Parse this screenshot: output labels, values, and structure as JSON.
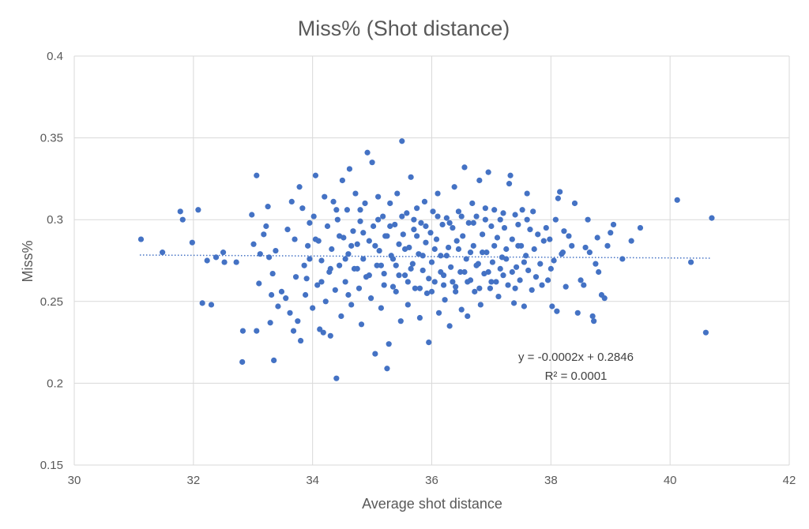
{
  "chart_data": {
    "type": "scatter",
    "title": "Miss% (Shot distance)",
    "xlabel": "Average shot distance",
    "ylabel": "Miss%",
    "xlim": [
      30,
      42
    ],
    "ylim": [
      0.15,
      0.4
    ],
    "x_ticks": [
      30,
      32,
      34,
      36,
      38,
      40,
      42
    ],
    "x_tick_labels": [
      "30",
      "32",
      "34",
      "36",
      "38",
      "40",
      "42"
    ],
    "y_ticks": [
      0.15,
      0.2,
      0.25,
      0.3,
      0.35,
      0.4
    ],
    "y_tick_labels": [
      "0.15",
      "0.2",
      "0.25",
      "0.3",
      "0.35",
      "0.4"
    ],
    "grid": true,
    "legend": "none",
    "marker_color": "#4472C4",
    "trendline": {
      "type": "linear",
      "slope": -0.0002,
      "intercept": 0.2846,
      "x_range": [
        31.1,
        40.7
      ],
      "style": "dotted",
      "equation_label": "y = -0.0002x + 0.2846",
      "r2_label": "R² = 0.0001"
    },
    "points": [
      [
        31.12,
        0.288
      ],
      [
        31.48,
        0.28
      ],
      [
        31.78,
        0.305
      ],
      [
        31.82,
        0.3
      ],
      [
        31.98,
        0.286
      ],
      [
        32.08,
        0.306
      ],
      [
        32.15,
        0.249
      ],
      [
        32.23,
        0.275
      ],
      [
        32.3,
        0.248
      ],
      [
        32.38,
        0.277
      ],
      [
        32.5,
        0.28
      ],
      [
        32.52,
        0.274
      ],
      [
        32.72,
        0.274
      ],
      [
        32.83,
        0.232
      ],
      [
        32.82,
        0.213
      ],
      [
        32.98,
        0.303
      ],
      [
        33.01,
        0.285
      ],
      [
        33.06,
        0.327
      ],
      [
        33.06,
        0.232
      ],
      [
        33.1,
        0.261
      ],
      [
        33.12,
        0.279
      ],
      [
        33.18,
        0.291
      ],
      [
        33.22,
        0.296
      ],
      [
        33.25,
        0.308
      ],
      [
        33.27,
        0.277
      ],
      [
        33.29,
        0.237
      ],
      [
        33.31,
        0.254
      ],
      [
        33.33,
        0.267
      ],
      [
        33.35,
        0.214
      ],
      [
        33.38,
        0.281
      ],
      [
        33.42,
        0.247
      ],
      [
        33.48,
        0.256
      ],
      [
        33.55,
        0.252
      ],
      [
        33.58,
        0.294
      ],
      [
        33.62,
        0.243
      ],
      [
        33.65,
        0.311
      ],
      [
        33.68,
        0.232
      ],
      [
        33.72,
        0.265
      ],
      [
        33.75,
        0.238
      ],
      [
        33.78,
        0.32
      ],
      [
        33.8,
        0.226
      ],
      [
        33.83,
        0.307
      ],
      [
        33.86,
        0.272
      ],
      [
        33.88,
        0.254
      ],
      [
        33.92,
        0.284
      ],
      [
        33.95,
        0.298
      ],
      [
        34.0,
        0.246
      ],
      [
        34.02,
        0.302
      ],
      [
        34.05,
        0.327
      ],
      [
        34.08,
        0.26
      ],
      [
        34.1,
        0.287
      ],
      [
        34.12,
        0.233
      ],
      [
        34.15,
        0.275
      ],
      [
        34.18,
        0.231
      ],
      [
        34.2,
        0.314
      ],
      [
        34.22,
        0.25
      ],
      [
        34.25,
        0.296
      ],
      [
        34.28,
        0.268
      ],
      [
        34.3,
        0.229
      ],
      [
        34.32,
        0.282
      ],
      [
        34.35,
        0.311
      ],
      [
        34.38,
        0.257
      ],
      [
        34.4,
        0.203
      ],
      [
        34.42,
        0.3
      ],
      [
        34.45,
        0.272
      ],
      [
        34.48,
        0.241
      ],
      [
        34.5,
        0.324
      ],
      [
        34.52,
        0.289
      ],
      [
        34.55,
        0.262
      ],
      [
        34.58,
        0.306
      ],
      [
        34.6,
        0.279
      ],
      [
        34.62,
        0.331
      ],
      [
        34.65,
        0.248
      ],
      [
        34.68,
        0.293
      ],
      [
        34.7,
        0.27
      ],
      [
        34.72,
        0.316
      ],
      [
        34.75,
        0.285
      ],
      [
        34.78,
        0.258
      ],
      [
        34.8,
        0.299
      ],
      [
        34.82,
        0.236
      ],
      [
        34.85,
        0.276
      ],
      [
        34.88,
        0.31
      ],
      [
        34.9,
        0.265
      ],
      [
        34.92,
        0.341
      ],
      [
        34.95,
        0.287
      ],
      [
        34.98,
        0.252
      ],
      [
        35.0,
        0.335
      ],
      [
        35.02,
        0.296
      ],
      [
        35.05,
        0.218
      ],
      [
        35.08,
        0.272
      ],
      [
        35.1,
        0.314
      ],
      [
        35.12,
        0.281
      ],
      [
        35.15,
        0.246
      ],
      [
        35.18,
        0.302
      ],
      [
        35.2,
        0.267
      ],
      [
        35.22,
        0.29
      ],
      [
        35.25,
        0.209
      ],
      [
        35.28,
        0.224
      ],
      [
        35.3,
        0.31
      ],
      [
        35.32,
        0.278
      ],
      [
        35.35,
        0.259
      ],
      [
        35.38,
        0.297
      ],
      [
        35.4,
        0.272
      ],
      [
        35.42,
        0.316
      ],
      [
        35.45,
        0.285
      ],
      [
        35.48,
        0.238
      ],
      [
        35.5,
        0.348
      ],
      [
        35.52,
        0.291
      ],
      [
        35.55,
        0.266
      ],
      [
        35.58,
        0.304
      ],
      [
        35.6,
        0.248
      ],
      [
        35.62,
        0.283
      ],
      [
        35.65,
        0.326
      ],
      [
        35.68,
        0.273
      ],
      [
        35.7,
        0.294
      ],
      [
        35.72,
        0.258
      ],
      [
        35.75,
        0.307
      ],
      [
        35.78,
        0.279
      ],
      [
        35.8,
        0.24
      ],
      [
        35.82,
        0.298
      ],
      [
        35.85,
        0.269
      ],
      [
        35.88,
        0.311
      ],
      [
        35.9,
        0.286
      ],
      [
        35.92,
        0.255
      ],
      [
        35.95,
        0.225
      ],
      [
        35.98,
        0.292
      ],
      [
        36.0,
        0.274
      ],
      [
        36.02,
        0.305
      ],
      [
        36.05,
        0.262
      ],
      [
        36.08,
        0.288
      ],
      [
        36.1,
        0.316
      ],
      [
        36.12,
        0.243
      ],
      [
        36.15,
        0.278
      ],
      [
        36.18,
        0.297
      ],
      [
        36.2,
        0.266
      ],
      [
        36.22,
        0.251
      ],
      [
        36.25,
        0.301
      ],
      [
        36.28,
        0.283
      ],
      [
        36.3,
        0.235
      ],
      [
        36.32,
        0.271
      ],
      [
        36.35,
        0.295
      ],
      [
        36.38,
        0.32
      ],
      [
        36.4,
        0.259
      ],
      [
        36.42,
        0.287
      ],
      [
        36.45,
        0.305
      ],
      [
        36.48,
        0.268
      ],
      [
        36.5,
        0.245
      ],
      [
        36.52,
        0.29
      ],
      [
        36.55,
        0.332
      ],
      [
        36.58,
        0.276
      ],
      [
        36.6,
        0.241
      ],
      [
        36.62,
        0.298
      ],
      [
        36.65,
        0.263
      ],
      [
        36.68,
        0.31
      ],
      [
        36.7,
        0.284
      ],
      [
        36.72,
        0.256
      ],
      [
        36.75,
        0.302
      ],
      [
        36.78,
        0.273
      ],
      [
        36.8,
        0.324
      ],
      [
        36.82,
        0.248
      ],
      [
        36.85,
        0.291
      ],
      [
        36.88,
        0.267
      ],
      [
        36.9,
        0.307
      ],
      [
        36.92,
        0.28
      ],
      [
        36.95,
        0.329
      ],
      [
        36.98,
        0.258
      ],
      [
        37.0,
        0.296
      ],
      [
        37.02,
        0.274
      ],
      [
        37.05,
        0.306
      ],
      [
        37.08,
        0.262
      ],
      [
        37.1,
        0.289
      ],
      [
        37.12,
        0.253
      ],
      [
        37.15,
        0.3
      ],
      [
        37.18,
        0.277
      ],
      [
        37.2,
        0.266
      ],
      [
        37.22,
        0.295
      ],
      [
        37.25,
        0.282
      ],
      [
        37.28,
        0.26
      ],
      [
        37.3,
        0.322
      ],
      [
        37.32,
        0.327
      ],
      [
        37.35,
        0.288
      ],
      [
        37.38,
        0.249
      ],
      [
        37.4,
        0.303
      ],
      [
        37.42,
        0.271
      ],
      [
        37.45,
        0.297
      ],
      [
        37.48,
        0.263
      ],
      [
        37.5,
        0.284
      ],
      [
        37.52,
        0.306
      ],
      [
        37.55,
        0.247
      ],
      [
        37.58,
        0.278
      ],
      [
        37.6,
        0.316
      ],
      [
        37.62,
        0.269
      ],
      [
        37.65,
        0.294
      ],
      [
        37.68,
        0.257
      ],
      [
        37.7,
        0.305
      ],
      [
        37.72,
        0.282
      ],
      [
        37.75,
        0.265
      ],
      [
        37.78,
        0.291
      ],
      [
        37.82,
        0.273
      ],
      [
        37.85,
        0.26
      ],
      [
        37.88,
        0.287
      ],
      [
        37.92,
        0.295
      ],
      [
        37.95,
        0.263
      ],
      [
        37.98,
        0.288
      ],
      [
        38.02,
        0.247
      ],
      [
        38.05,
        0.275
      ],
      [
        38.08,
        0.3
      ],
      [
        38.1,
        0.244
      ],
      [
        38.12,
        0.313
      ],
      [
        38.15,
        0.317
      ],
      [
        38.18,
        0.279
      ],
      [
        38.22,
        0.293
      ],
      [
        38.25,
        0.259
      ],
      [
        38.3,
        0.29
      ],
      [
        38.35,
        0.284
      ],
      [
        38.4,
        0.31
      ],
      [
        38.45,
        0.243
      ],
      [
        38.5,
        0.263
      ],
      [
        38.55,
        0.26
      ],
      [
        38.58,
        0.283
      ],
      [
        38.62,
        0.3
      ],
      [
        38.65,
        0.28
      ],
      [
        38.7,
        0.241
      ],
      [
        38.72,
        0.238
      ],
      [
        38.75,
        0.273
      ],
      [
        38.78,
        0.289
      ],
      [
        38.8,
        0.268
      ],
      [
        38.85,
        0.254
      ],
      [
        38.9,
        0.252
      ],
      [
        38.95,
        0.284
      ],
      [
        39.0,
        0.292
      ],
      [
        39.05,
        0.297
      ],
      [
        39.2,
        0.276
      ],
      [
        39.35,
        0.287
      ],
      [
        39.5,
        0.295
      ],
      [
        40.12,
        0.312
      ],
      [
        40.35,
        0.274
      ],
      [
        40.6,
        0.231
      ],
      [
        40.7,
        0.301
      ],
      [
        33.95,
        0.276
      ],
      [
        34.05,
        0.288
      ],
      [
        34.15,
        0.262
      ],
      [
        34.3,
        0.27
      ],
      [
        34.45,
        0.29
      ],
      [
        34.55,
        0.276
      ],
      [
        34.65,
        0.284
      ],
      [
        34.75,
        0.27
      ],
      [
        34.85,
        0.292
      ],
      [
        34.95,
        0.266
      ],
      [
        35.05,
        0.284
      ],
      [
        35.15,
        0.272
      ],
      [
        35.25,
        0.29
      ],
      [
        35.35,
        0.276
      ],
      [
        35.45,
        0.266
      ],
      [
        35.55,
        0.282
      ],
      [
        35.65,
        0.27
      ],
      [
        35.75,
        0.29
      ],
      [
        35.85,
        0.278
      ],
      [
        35.95,
        0.264
      ],
      [
        36.05,
        0.282
      ],
      [
        36.15,
        0.268
      ],
      [
        36.25,
        0.278
      ],
      [
        36.35,
        0.262
      ],
      [
        36.45,
        0.282
      ],
      [
        36.55,
        0.268
      ],
      [
        36.65,
        0.28
      ],
      [
        36.75,
        0.272
      ],
      [
        36.85,
        0.28
      ],
      [
        36.95,
        0.268
      ],
      [
        37.05,
        0.284
      ],
      [
        37.15,
        0.27
      ],
      [
        37.25,
        0.276
      ],
      [
        37.35,
        0.268
      ],
      [
        37.45,
        0.284
      ],
      [
        37.55,
        0.274
      ],
      [
        35.1,
        0.3
      ],
      [
        35.3,
        0.296
      ],
      [
        35.5,
        0.302
      ],
      [
        35.7,
        0.3
      ],
      [
        35.9,
        0.296
      ],
      [
        36.1,
        0.302
      ],
      [
        36.3,
        0.298
      ],
      [
        36.5,
        0.302
      ],
      [
        36.7,
        0.298
      ],
      [
        36.9,
        0.3
      ],
      [
        35.2,
        0.26
      ],
      [
        35.4,
        0.256
      ],
      [
        35.6,
        0.262
      ],
      [
        35.8,
        0.258
      ],
      [
        36.0,
        0.256
      ],
      [
        36.2,
        0.26
      ],
      [
        36.4,
        0.256
      ],
      [
        36.6,
        0.262
      ],
      [
        36.8,
        0.258
      ],
      [
        37.0,
        0.262
      ],
      [
        34.4,
        0.306
      ],
      [
        34.6,
        0.254
      ],
      [
        34.8,
        0.306
      ],
      [
        37.2,
        0.304
      ],
      [
        37.4,
        0.258
      ],
      [
        37.6,
        0.3
      ],
      [
        33.7,
        0.288
      ],
      [
        33.9,
        0.264
      ],
      [
        38.0,
        0.27
      ],
      [
        38.2,
        0.28
      ]
    ]
  }
}
